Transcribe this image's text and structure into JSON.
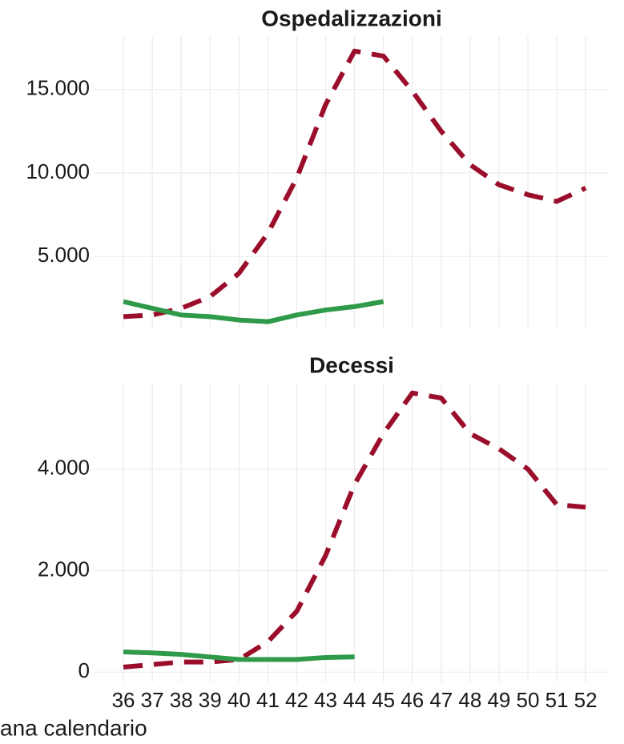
{
  "chart_data": [
    {
      "type": "line",
      "title": "Ospedalizzazioni",
      "x": [
        36,
        37,
        38,
        39,
        40,
        41,
        42,
        43,
        44,
        45,
        46,
        47,
        48,
        49,
        50,
        51,
        52
      ],
      "xlim": [
        35,
        52.8
      ],
      "series": [
        {
          "color": "#9b0e2b",
          "dash": true,
          "values": [
            1400,
            1500,
            1900,
            2600,
            4000,
            6400,
            9700,
            14100,
            17300,
            17000,
            14900,
            12500,
            10500,
            9300,
            8700,
            8300,
            9100
          ]
        },
        {
          "color": "#2f9a4a",
          "dash": false,
          "values": [
            2300,
            1900,
            1500,
            1400,
            1200,
            1100,
            1500,
            1800,
            2000,
            2300,
            null,
            null,
            null,
            null,
            null,
            null,
            null
          ]
        }
      ],
      "ylim": [
        700,
        18200
      ],
      "yticks": [
        {
          "value": 5000,
          "label": "5.000"
        },
        {
          "value": 10000,
          "label": "10.000"
        },
        {
          "value": 15000,
          "label": "15.000"
        }
      ],
      "grid": true
    },
    {
      "type": "line",
      "title": "Decessi",
      "x": [
        36,
        37,
        38,
        39,
        40,
        41,
        42,
        43,
        44,
        45,
        46,
        47,
        48,
        49,
        50,
        51,
        52
      ],
      "xlim": [
        35,
        52.8
      ],
      "xticks": [
        36,
        37,
        38,
        39,
        40,
        41,
        42,
        43,
        44,
        45,
        46,
        47,
        48,
        49,
        50,
        51,
        52
      ],
      "xlabel": "ana calendario",
      "series": [
        {
          "color": "#9b0e2b",
          "dash": true,
          "values": [
            100,
            150,
            200,
            200,
            250,
            600,
            1200,
            2300,
            3700,
            4700,
            5500,
            5400,
            4700,
            4400,
            4000,
            3300,
            3250
          ]
        },
        {
          "color": "#2f9a4a",
          "dash": false,
          "values": [
            400,
            380,
            350,
            300,
            250,
            250,
            250,
            290,
            300,
            null,
            null,
            null,
            null,
            null,
            null,
            null,
            null
          ]
        }
      ],
      "ylim": [
        -200,
        5700
      ],
      "yticks": [
        0,
        {
          "value": 2000,
          "label": "2.000"
        },
        {
          "value": 4000,
          "label": "4.000"
        }
      ],
      "grid": true
    }
  ]
}
